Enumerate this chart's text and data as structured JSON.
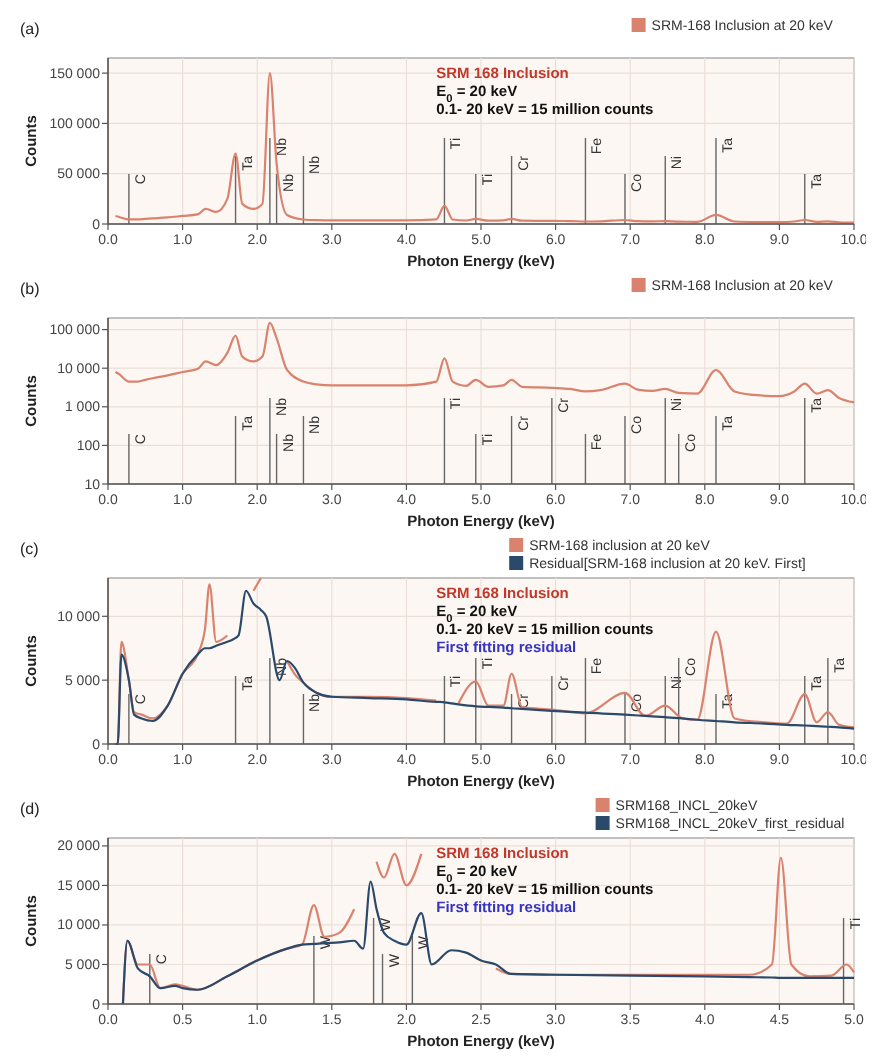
{
  "chart_data": [
    {
      "type": "line",
      "annotations": [
        "(a)",
        "SRM 168 Inclusion",
        "E$_{0}$ = 20 keV",
        "0.1- 20 keV = 15 million counts"
      ],
      "xlabel": "Photon Energy (keV)",
      "ylabel": "Counts",
      "xlim": [
        0,
        10
      ],
      "ylim": [
        0,
        165000
      ],
      "xticks": [
        {
          "value": 0,
          "label": "0.0"
        },
        {
          "value": 1,
          "label": "1.0"
        },
        {
          "value": 2,
          "label": "2.0"
        },
        {
          "value": 3,
          "label": "3.0"
        },
        {
          "value": 4,
          "label": "4.0"
        },
        {
          "value": 5,
          "label": "5.0"
        },
        {
          "value": 6,
          "label": "6.0"
        },
        {
          "value": 7,
          "label": "7.0"
        },
        {
          "value": 8,
          "label": "8.0"
        },
        {
          "value": 9,
          "label": "9.0"
        },
        {
          "value": 10,
          "label": "10.0"
        }
      ],
      "yticks": [
        0,
        {
          "value": 50000,
          "label": "50 000"
        },
        {
          "value": 100000,
          "label": "100 000"
        },
        {
          "value": 150000,
          "label": "150 000"
        }
      ],
      "grid": true,
      "legend": "top right",
      "series": [
        {
          "name": "SRM-168 Inclusion at 20 keV",
          "color": "#d9826e",
          "x": [
            0.1,
            0.15,
            0.28,
            0.4,
            0.5,
            0.6,
            0.8,
            1.0,
            1.2,
            1.31,
            1.45,
            1.6,
            1.71,
            1.8,
            1.95,
            2.07,
            2.17,
            2.26,
            2.4,
            2.62,
            2.8,
            3.0,
            3.5,
            4.0,
            4.4,
            4.51,
            4.62,
            4.8,
            4.93,
            5.1,
            5.3,
            5.41,
            5.55,
            5.95,
            6.2,
            6.4,
            6.6,
            6.93,
            7.1,
            7.3,
            7.47,
            7.65,
            7.9,
            8.15,
            8.4,
            8.7,
            9.0,
            9.2,
            9.34,
            9.5,
            9.65,
            9.8,
            10.0
          ],
          "values": [
            8000,
            7000,
            4500,
            4500,
            5000,
            5500,
            6500,
            8000,
            9500,
            15000,
            12000,
            25000,
            70000,
            20000,
            15000,
            20000,
            150000,
            60000,
            9000,
            4500,
            3800,
            3600,
            3600,
            3600,
            4500,
            18000,
            4500,
            3500,
            5000,
            3300,
            3600,
            5000,
            3300,
            3100,
            2900,
            2500,
            2700,
            4000,
            2800,
            2600,
            2900,
            2300,
            2200,
            9000,
            2500,
            2000,
            1900,
            2500,
            4000,
            2200,
            2700,
            1700,
            1300
          ]
        }
      ],
      "ref_lines": [
        {
          "axis": "x",
          "value": 0.28,
          "label": "C"
        },
        {
          "axis": "x",
          "value": 1.71,
          "label": "Ta"
        },
        {
          "axis": "x",
          "value": 2.17,
          "label": "Nb"
        },
        {
          "axis": "x",
          "value": 2.26,
          "label": "Nb"
        },
        {
          "axis": "x",
          "value": 2.62,
          "label": "Nb"
        },
        {
          "axis": "x",
          "value": 4.51,
          "label": "Ti"
        },
        {
          "axis": "x",
          "value": 4.93,
          "label": "Ti"
        },
        {
          "axis": "x",
          "value": 5.41,
          "label": "Cr"
        },
        {
          "axis": "x",
          "value": 6.4,
          "label": "Fe"
        },
        {
          "axis": "x",
          "value": 6.93,
          "label": "Co"
        },
        {
          "axis": "x",
          "value": 7.47,
          "label": "Ni"
        },
        {
          "axis": "x",
          "value": 8.15,
          "label": "Ta"
        },
        {
          "axis": "x",
          "value": 9.34,
          "label": "Ta"
        }
      ]
    },
    {
      "type": "line",
      "annotations": [
        "(b)"
      ],
      "xlabel": "Photon Energy (keV)",
      "ylabel": "Counts",
      "xlim": [
        0,
        10
      ],
      "ylim": [
        10,
        200000
      ],
      "log": true,
      "xticks": [
        {
          "value": 0,
          "label": "0.0"
        },
        {
          "value": 1,
          "label": "1.0"
        },
        {
          "value": 2,
          "label": "2.0"
        },
        {
          "value": 3,
          "label": "3.0"
        },
        {
          "value": 4,
          "label": "4.0"
        },
        {
          "value": 5,
          "label": "5.0"
        },
        {
          "value": 6,
          "label": "6.0"
        },
        {
          "value": 7,
          "label": "7.0"
        },
        {
          "value": 8,
          "label": "8.0"
        },
        {
          "value": 9,
          "label": "9.0"
        },
        {
          "value": 10,
          "label": "10.0"
        }
      ],
      "yticks": [
        10,
        100,
        {
          "value": 1000,
          "label": "1 000"
        },
        {
          "value": 10000,
          "label": "10 000"
        },
        {
          "value": 100000,
          "label": "100 000"
        }
      ],
      "grid": true,
      "legend": "top right",
      "series": [
        {
          "name": "SRM-168 Inclusion at 20 keV",
          "color": "#d9826e",
          "x": [
            0.1,
            0.15,
            0.28,
            0.4,
            0.5,
            0.6,
            0.8,
            1.0,
            1.2,
            1.31,
            1.45,
            1.6,
            1.71,
            1.8,
            1.95,
            2.07,
            2.17,
            2.26,
            2.4,
            2.62,
            2.8,
            3.0,
            3.5,
            4.0,
            4.4,
            4.51,
            4.62,
            4.8,
            4.93,
            5.1,
            5.3,
            5.41,
            5.55,
            5.95,
            6.2,
            6.4,
            6.6,
            6.93,
            7.1,
            7.3,
            7.47,
            7.65,
            7.9,
            8.15,
            8.4,
            8.7,
            9.0,
            9.2,
            9.34,
            9.5,
            9.65,
            9.8,
            10.0
          ],
          "values": [
            8000,
            7000,
            4500,
            4500,
            5000,
            5500,
            6500,
            8000,
            9500,
            15000,
            12000,
            25000,
            70000,
            20000,
            15000,
            20000,
            150000,
            60000,
            9000,
            4500,
            3800,
            3600,
            3600,
            3600,
            4500,
            18000,
            4500,
            3500,
            5000,
            3300,
            3600,
            5000,
            3300,
            3100,
            2900,
            2500,
            2700,
            4000,
            2800,
            2600,
            2900,
            2300,
            2200,
            9000,
            2500,
            2000,
            1900,
            2500,
            4000,
            2200,
            2700,
            1700,
            1300
          ]
        }
      ],
      "ref_lines": [
        {
          "axis": "x",
          "value": 0.28,
          "label": "C"
        },
        {
          "axis": "x",
          "value": 1.71,
          "label": "Ta"
        },
        {
          "axis": "x",
          "value": 2.17,
          "label": "Nb"
        },
        {
          "axis": "x",
          "value": 2.26,
          "label": "Nb"
        },
        {
          "axis": "x",
          "value": 2.62,
          "label": "Nb"
        },
        {
          "axis": "x",
          "value": 4.51,
          "label": "Ti"
        },
        {
          "axis": "x",
          "value": 4.93,
          "label": "Ti"
        },
        {
          "axis": "x",
          "value": 5.41,
          "label": "Cr"
        },
        {
          "axis": "x",
          "value": 5.95,
          "label": "Cr"
        },
        {
          "axis": "x",
          "value": 6.4,
          "label": "Fe"
        },
        {
          "axis": "x",
          "value": 6.93,
          "label": "Co"
        },
        {
          "axis": "x",
          "value": 7.47,
          "label": "Ni"
        },
        {
          "axis": "x",
          "value": 7.65,
          "label": "Co"
        },
        {
          "axis": "x",
          "value": 8.15,
          "label": "Ta"
        },
        {
          "axis": "x",
          "value": 9.34,
          "label": "Ta"
        }
      ]
    },
    {
      "type": "line",
      "annotations": [
        "(c)",
        "SRM 168 Inclusion",
        "E$_{0}$ = 20 keV",
        "0.1- 20 keV = 15 million counts",
        "First fitting residual"
      ],
      "xlabel": "Photon Energy (keV)",
      "ylabel": "Counts",
      "xlim": [
        0,
        10
      ],
      "ylim": [
        0,
        13000
      ],
      "xticks": [
        {
          "value": 0,
          "label": "0.0"
        },
        {
          "value": 1,
          "label": "1.0"
        },
        {
          "value": 2,
          "label": "2.0"
        },
        {
          "value": 3,
          "label": "3.0"
        },
        {
          "value": 4,
          "label": "4.0"
        },
        {
          "value": 5,
          "label": "5.0"
        },
        {
          "value": 6,
          "label": "6.0"
        },
        {
          "value": 7,
          "label": "7.0"
        },
        {
          "value": 8,
          "label": "8.0"
        },
        {
          "value": 9,
          "label": "9.0"
        },
        {
          "value": 10,
          "label": "10.0"
        }
      ],
      "yticks": [
        0,
        {
          "value": 5000,
          "label": "5 000"
        },
        {
          "value": 10000,
          "label": "10 000"
        }
      ],
      "grid": true,
      "legend": "top right",
      "series": [
        {
          "name": "SRM-168 inclusion at 20 keV",
          "color": "#d9826e",
          "x": [
            0.1,
            0.13,
            0.18,
            0.28,
            0.35,
            0.45,
            0.6,
            0.8,
            1.0,
            1.2,
            1.3,
            1.36,
            1.45,
            1.6,
            1.68,
            1.75,
            1.85,
            1.95,
            2.05,
            2.12,
            2.3,
            2.4,
            2.5,
            2.62,
            2.8,
            3.0,
            3.5,
            4.0,
            4.4,
            4.45,
            4.58,
            4.7,
            4.93,
            5.1,
            5.3,
            5.41,
            5.55,
            5.95,
            6.4,
            6.93,
            7.2,
            7.47,
            7.7,
            7.9,
            8.15,
            8.4,
            8.8,
            9.1,
            9.34,
            9.5,
            9.65,
            9.8,
            10.0
          ],
          "values": [
            0,
            0,
            8000,
            5000,
            2500,
            2300,
            2000,
            3000,
            5500,
            7000,
            9000,
            12500,
            8000,
            8500,
            null,
            null,
            null,
            12000,
            13000,
            null,
            null,
            6500,
            5500,
            4800,
            4000,
            3700,
            3700,
            3600,
            3400,
            null,
            null,
            3200,
            4900,
            3000,
            3000,
            5500,
            2900,
            2700,
            2400,
            4000,
            2200,
            3000,
            2000,
            1900,
            8800,
            2000,
            1700,
            1600,
            3900,
            1700,
            2500,
            1500,
            1300
          ]
        },
        {
          "name": "Residual[SRM-168 inclusion at 20 keV. First]",
          "color": "#2b4a6b",
          "x": [
            0.1,
            0.13,
            0.18,
            0.28,
            0.35,
            0.45,
            0.6,
            0.8,
            1.0,
            1.2,
            1.3,
            1.36,
            1.45,
            1.6,
            1.68,
            1.75,
            1.85,
            1.95,
            2.05,
            2.12,
            2.3,
            2.4,
            2.5,
            2.62,
            2.8,
            3.0,
            3.5,
            4.0,
            4.4,
            4.45,
            4.58,
            4.7,
            4.93,
            5.1,
            5.3,
            5.41,
            5.55,
            5.95,
            6.4,
            6.93,
            7.2,
            7.47,
            7.7,
            7.9,
            8.15,
            8.4,
            8.8,
            9.1,
            9.34,
            9.5,
            9.65,
            9.8,
            10.0
          ],
          "values": [
            0,
            0,
            7000,
            5000,
            2300,
            2000,
            1800,
            3000,
            5500,
            7000,
            7500,
            7500,
            7700,
            8000,
            8200,
            8500,
            12000,
            11000,
            10500,
            10000,
            5000,
            6500,
            6000,
            4800,
            4000,
            3700,
            3600,
            3500,
            3300,
            3300,
            3200,
            3100,
            2950,
            2900,
            2850,
            2800,
            2750,
            2600,
            2450,
            2300,
            2200,
            2100,
            2000,
            1900,
            1800,
            1700,
            1600,
            1500,
            1450,
            1400,
            1350,
            1300,
            1200
          ]
        }
      ],
      "ref_lines": [
        {
          "axis": "x",
          "value": 0.28,
          "label": "C"
        },
        {
          "axis": "x",
          "value": 1.71,
          "label": "Ta"
        },
        {
          "axis": "x",
          "value": 2.17,
          "label": "Nb"
        },
        {
          "axis": "x",
          "value": 2.62,
          "label": "Nb"
        },
        {
          "axis": "x",
          "value": 4.51,
          "label": "Ti"
        },
        {
          "axis": "x",
          "value": 4.93,
          "label": "Ti"
        },
        {
          "axis": "x",
          "value": 5.41,
          "label": "Cr"
        },
        {
          "axis": "x",
          "value": 5.95,
          "label": "Cr"
        },
        {
          "axis": "x",
          "value": 6.4,
          "label": "Fe"
        },
        {
          "axis": "x",
          "value": 6.93,
          "label": "Co"
        },
        {
          "axis": "x",
          "value": 7.47,
          "label": "Ni"
        },
        {
          "axis": "x",
          "value": 7.65,
          "label": "Co"
        },
        {
          "axis": "x",
          "value": 8.15,
          "label": "Ta"
        },
        {
          "axis": "x",
          "value": 9.34,
          "label": "Ta"
        },
        {
          "axis": "x",
          "value": 9.65,
          "label": "Ta"
        }
      ]
    },
    {
      "type": "line",
      "annotations": [
        "(d)",
        "SRM 168 Inclusion",
        "E$_{0}$ = 20 keV",
        "0.1- 20 keV = 15 million counts",
        "First fitting residual"
      ],
      "xlabel": "Photon Energy (keV)",
      "ylabel": "Counts",
      "xlim": [
        0,
        5
      ],
      "ylim": [
        0,
        21000
      ],
      "xticks": [
        {
          "value": 0,
          "label": "0.0"
        },
        {
          "value": 0.5,
          "label": "0.5"
        },
        {
          "value": 1,
          "label": "1.0"
        },
        {
          "value": 1.5,
          "label": "1.5"
        },
        {
          "value": 2,
          "label": "2.0"
        },
        {
          "value": 2.5,
          "label": "2.5"
        },
        {
          "value": 3,
          "label": "3.0"
        },
        {
          "value": 3.5,
          "label": "3.5"
        },
        {
          "value": 4,
          "label": "4.0"
        },
        {
          "value": 4.5,
          "label": "4.5"
        },
        {
          "value": 5,
          "label": "5.0"
        }
      ],
      "yticks": [
        0,
        {
          "value": 5000,
          "label": "5 000"
        },
        {
          "value": 10000,
          "label": "10 000"
        },
        {
          "value": 15000,
          "label": "15 000"
        },
        {
          "value": 20000,
          "label": "20 000"
        }
      ],
      "grid": true,
      "legend": "top right",
      "series": [
        {
          "name": "SRM168_INCL_20keV",
          "color": "#d9826e",
          "x": [
            0.1,
            0.13,
            0.2,
            0.28,
            0.35,
            0.45,
            0.5,
            0.6,
            0.8,
            1.0,
            1.2,
            1.3,
            1.38,
            1.45,
            1.55,
            1.65,
            1.71,
            1.76,
            1.8,
            1.85,
            1.92,
            2.0,
            2.1,
            2.17,
            2.3,
            2.4,
            2.5,
            2.6,
            2.7,
            3.0,
            3.5,
            4.0,
            4.3,
            4.45,
            4.51,
            4.58,
            4.7,
            4.85,
            4.95,
            5.0
          ],
          "values": [
            0,
            8000,
            5000,
            5000,
            2000,
            2500,
            2300,
            1800,
            3500,
            5500,
            7000,
            7500,
            12500,
            8500,
            9000,
            12000,
            null,
            null,
            18000,
            16000,
            19000,
            15000,
            19000,
            null,
            null,
            null,
            null,
            4500,
            3800,
            3700,
            3700,
            3700,
            3700,
            5000,
            18500,
            5000,
            3500,
            3600,
            5000,
            4000
          ]
        },
        {
          "name": "SRM168_INCL_20keV_first_residual",
          "color": "#2b4a6b",
          "x": [
            0.1,
            0.13,
            0.2,
            0.28,
            0.35,
            0.45,
            0.5,
            0.6,
            0.8,
            1.0,
            1.2,
            1.3,
            1.38,
            1.45,
            1.55,
            1.65,
            1.71,
            1.76,
            1.8,
            1.85,
            1.92,
            2.0,
            2.1,
            2.17,
            2.3,
            2.4,
            2.5,
            2.6,
            2.7,
            3.0,
            3.5,
            4.0,
            4.3,
            4.45,
            4.51,
            4.58,
            4.7,
            4.85,
            4.95,
            5.0
          ],
          "values": [
            0,
            8000,
            4500,
            3500,
            2000,
            2300,
            2000,
            1800,
            3500,
            5500,
            7000,
            7500,
            7600,
            7700,
            7800,
            8000,
            7000,
            15500,
            12000,
            9000,
            8000,
            7500,
            11500,
            5000,
            6800,
            6500,
            5500,
            5000,
            3800,
            3700,
            3600,
            3500,
            3400,
            3350,
            3300,
            3300,
            3300,
            3300,
            3300,
            3300
          ]
        }
      ],
      "ref_lines": [
        {
          "axis": "x",
          "value": 0.28,
          "label": "C"
        },
        {
          "axis": "x",
          "value": 1.38,
          "label": "W"
        },
        {
          "axis": "x",
          "value": 1.78,
          "label": "W"
        },
        {
          "axis": "x",
          "value": 1.84,
          "label": "W"
        },
        {
          "axis": "x",
          "value": 2.04,
          "label": "W"
        },
        {
          "axis": "x",
          "value": 4.93,
          "label": "Ti"
        }
      ]
    }
  ]
}
